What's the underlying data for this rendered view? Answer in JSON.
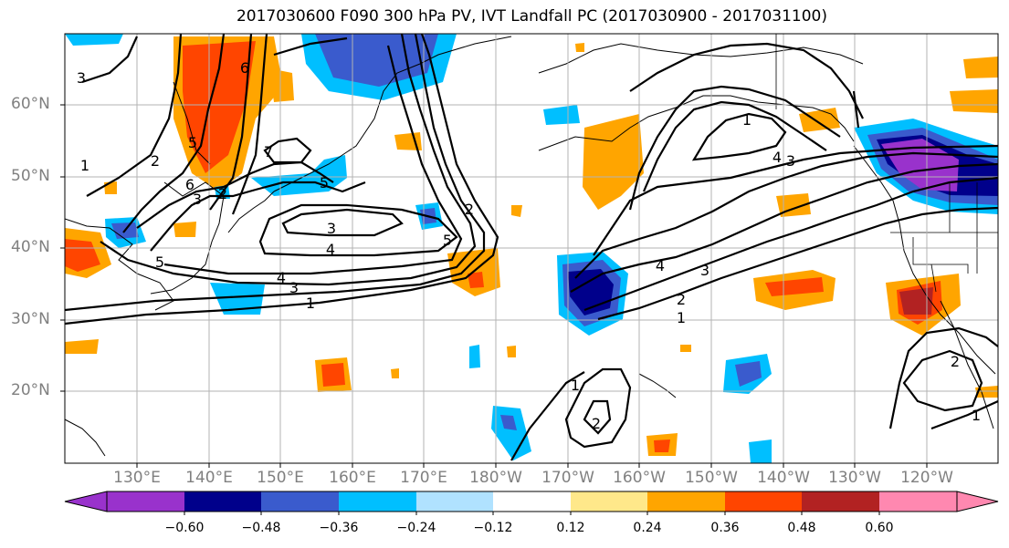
{
  "title": "2017030600 F090 300 hPa PV, IVT Landfall PC (2017030900 - 2017031100)",
  "lat_labels": [
    "60°N",
    "50°N",
    "40°N",
    "30°N",
    "20°N"
  ],
  "lon_labels": [
    "130°E",
    "140°E",
    "150°E",
    "160°E",
    "170°E",
    "180°W",
    "170°W",
    "160°W",
    "150°W",
    "140°W",
    "130°W",
    "120°W"
  ],
  "colorbar": {
    "ticks": [
      "−0.60",
      "−0.48",
      "−0.36",
      "−0.24",
      "−0.12",
      "0.12",
      "0.24",
      "0.36",
      "0.48",
      "0.60"
    ],
    "colors": [
      "#9932CC",
      "#00008B",
      "#3A5BCD",
      "#00BFFF",
      "#B0E2FF",
      "#FFFFFF",
      "#FFE88A",
      "#FFA500",
      "#FF4500",
      "#B22222",
      "#FF88B0"
    ]
  },
  "contour_labels": [
    "3",
    "1",
    "2",
    "6",
    "5",
    "7",
    "6",
    "5",
    "3",
    "5",
    "3",
    "4",
    "5",
    "2",
    "2",
    "4",
    "3",
    "4",
    "3",
    "1",
    "4",
    "3",
    "2",
    "1",
    "1",
    "2",
    "1",
    "2",
    "1"
  ]
}
